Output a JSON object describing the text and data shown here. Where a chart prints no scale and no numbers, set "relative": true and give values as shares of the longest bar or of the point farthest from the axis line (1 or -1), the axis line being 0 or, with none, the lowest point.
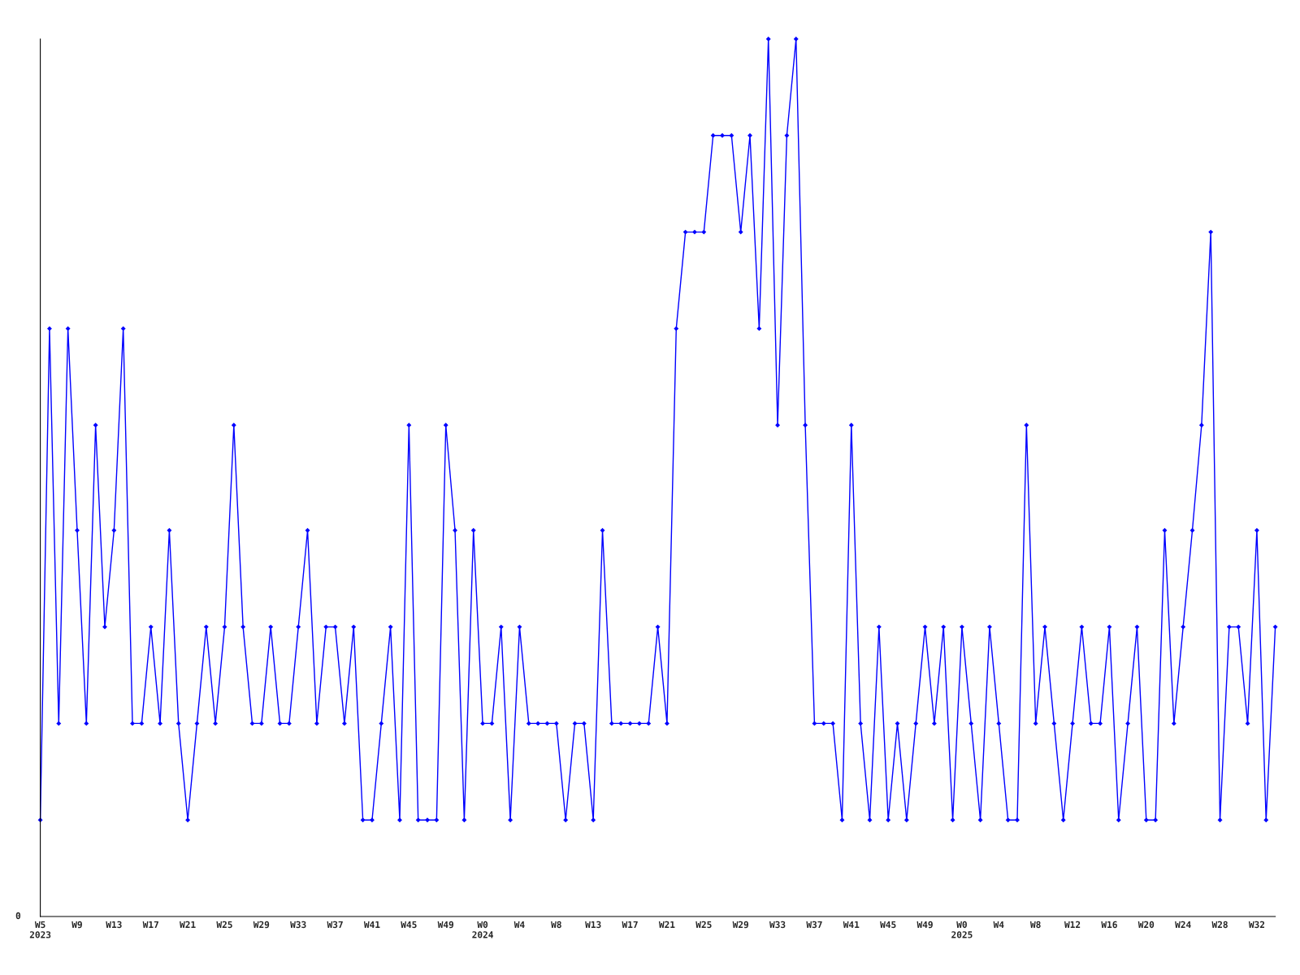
{
  "chart_data": {
    "type": "line",
    "relative": true,
    "marker": "diamond",
    "line_style": "solid",
    "grid": false,
    "legend": false,
    "categories": [
      "W5\n2023",
      null,
      null,
      null,
      "W9",
      null,
      null,
      null,
      "W13",
      null,
      null,
      null,
      "W17",
      null,
      null,
      null,
      "W21",
      null,
      null,
      null,
      "W25",
      null,
      null,
      null,
      "W29",
      null,
      null,
      null,
      "W33",
      null,
      null,
      null,
      "W37",
      null,
      null,
      null,
      "W41",
      null,
      null,
      null,
      "W45",
      null,
      null,
      null,
      "W49",
      null,
      null,
      null,
      "W0\n2024",
      null,
      null,
      null,
      "W4",
      null,
      null,
      null,
      "W8",
      null,
      null,
      null,
      "W13",
      null,
      null,
      null,
      "W17",
      null,
      null,
      null,
      "W21",
      null,
      null,
      null,
      "W25",
      null,
      null,
      null,
      "W29",
      null,
      null,
      null,
      "W33",
      null,
      null,
      null,
      "W37",
      null,
      null,
      null,
      "W41",
      null,
      null,
      null,
      "W45",
      null,
      null,
      null,
      "W49",
      null,
      null,
      null,
      "W0\n2025",
      null,
      null,
      null,
      "W4",
      null,
      null,
      null,
      "W8",
      null,
      null,
      null,
      "W12",
      null,
      null,
      null,
      "W16",
      null,
      null,
      null,
      "W20",
      null,
      null,
      null,
      "W24",
      null,
      null,
      null,
      "W28",
      null,
      null,
      null,
      "W32",
      null,
      null
    ],
    "series": [
      {
        "color": "#0000ff",
        "values": [
          0.11,
          0.67,
          0.22,
          0.67,
          0.44,
          0.22,
          0.56,
          0.33,
          0.44,
          0.67,
          0.22,
          0.22,
          0.33,
          0.22,
          0.44,
          0.22,
          0.11,
          0.22,
          0.33,
          0.22,
          0.33,
          0.56,
          0.33,
          0.22,
          0.22,
          0.33,
          0.22,
          0.22,
          0.33,
          0.44,
          0.22,
          0.33,
          0.33,
          0.22,
          0.33,
          0.11,
          0.11,
          0.22,
          0.33,
          0.11,
          0.56,
          0.11,
          0.11,
          0.11,
          0.56,
          0.44,
          0.11,
          0.44,
          0.22,
          0.22,
          0.33,
          0.11,
          0.33,
          0.22,
          0.22,
          0.22,
          0.22,
          0.11,
          0.22,
          0.22,
          0.11,
          0.44,
          0.22,
          0.22,
          0.22,
          0.22,
          0.22,
          0.33,
          0.22,
          0.67,
          0.78,
          0.78,
          0.78,
          0.89,
          0.89,
          0.89,
          0.78,
          0.89,
          0.67,
          1,
          0.56,
          0.89,
          1,
          0.56,
          0.22,
          0.22,
          0.22,
          0.11,
          0.56,
          0.22,
          0.11,
          0.33,
          0.11,
          0.22,
          0.11,
          0.22,
          0.33,
          0.22,
          0.33,
          0.11,
          0.33,
          0.22,
          0.11,
          0.33,
          0.22,
          0.11,
          0.11,
          0.56,
          0.22,
          0.33,
          0.22,
          0.11,
          0.22,
          0.33,
          0.22,
          0.22,
          0.33,
          0.11,
          0.22,
          0.33,
          0.11,
          0.11,
          0.44,
          0.22,
          0.33,
          0.44,
          0.56,
          0.78,
          0.11,
          0.33,
          0.33,
          0.22,
          0.44,
          0.11,
          0.33
        ]
      }
    ],
    "annotations": [
      "0"
    ]
  }
}
